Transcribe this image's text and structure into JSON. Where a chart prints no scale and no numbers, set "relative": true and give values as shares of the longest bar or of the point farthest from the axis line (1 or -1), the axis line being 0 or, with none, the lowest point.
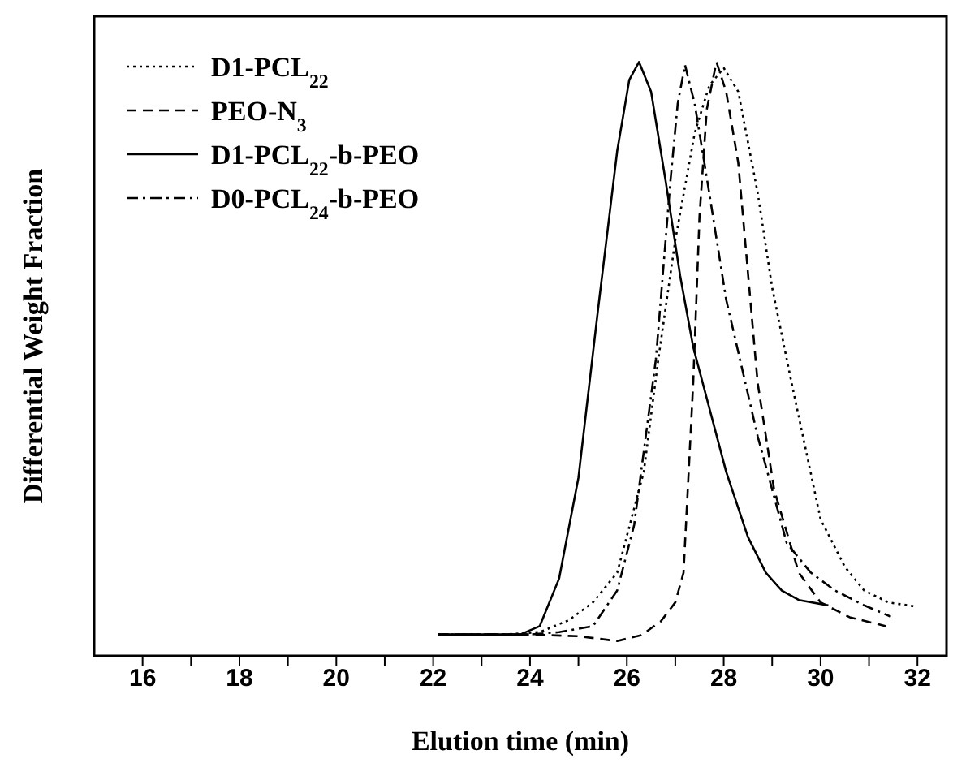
{
  "chart_data": {
    "type": "line",
    "relative": true,
    "xlabel": "Elution time (min)",
    "ylabel": "Differential Weight Fraction",
    "xlim": [
      15,
      32.6
    ],
    "xticks": [
      16,
      {
        "value": 17,
        "label": null
      },
      18,
      {
        "value": 19,
        "label": null
      },
      20,
      {
        "value": 21,
        "label": null
      },
      22,
      {
        "value": 23,
        "label": null
      },
      24,
      {
        "value": 25,
        "label": null
      },
      26,
      {
        "value": 27,
        "label": null
      },
      28,
      {
        "value": 29,
        "label": null
      },
      30,
      {
        "value": 31,
        "label": null
      },
      32
    ],
    "tick_labels": "x",
    "legend": "top left",
    "marker": "none",
    "series": [
      {
        "name": "D1-PCL$_{22}$",
        "color": "#000000",
        "line_style": "dotted",
        "x": [
          22.1,
          23.5,
          24.2,
          24.8,
          25.3,
          25.8,
          26.35,
          26.65,
          27.0,
          27.4,
          27.7,
          28.0,
          28.3,
          28.7,
          29.0,
          29.4,
          30.0,
          30.5,
          30.9,
          31.4,
          31.97
        ],
        "values": [
          0.036,
          0.036,
          0.04,
          0.06,
          0.09,
          0.14,
          0.31,
          0.5,
          0.7,
          0.88,
          0.96,
          0.99,
          0.95,
          0.78,
          0.62,
          0.46,
          0.23,
          0.15,
          0.11,
          0.09,
          0.083
        ]
      },
      {
        "name": "PEO-N$_{3}$",
        "color": "#000000",
        "line_style": "dashed",
        "x": [
          22.1,
          24.0,
          25.0,
          25.8,
          26.3,
          26.7,
          27.0,
          27.17,
          27.37,
          27.5,
          27.65,
          27.85,
          28.05,
          28.3,
          28.7,
          29.04,
          29.55,
          30.0,
          30.6,
          31.35
        ],
        "values": [
          0.036,
          0.036,
          0.033,
          0.025,
          0.035,
          0.058,
          0.09,
          0.14,
          0.46,
          0.74,
          0.92,
          1.0,
          0.95,
          0.83,
          0.46,
          0.28,
          0.14,
          0.09,
          0.065,
          0.05
        ]
      },
      {
        "name": "D1-PCL$_{22}$-b-PEO",
        "color": "#000000",
        "line_style": "solid",
        "x": [
          22.1,
          23.8,
          24.2,
          24.6,
          25.0,
          25.4,
          25.8,
          26.05,
          26.25,
          26.5,
          26.8,
          27.1,
          27.37,
          28.05,
          28.5,
          28.87,
          29.2,
          29.55,
          30.16
        ],
        "values": [
          0.036,
          0.036,
          0.05,
          0.13,
          0.3,
          0.58,
          0.85,
          0.97,
          1.0,
          0.95,
          0.8,
          0.64,
          0.52,
          0.31,
          0.2,
          0.14,
          0.11,
          0.094,
          0.085
        ]
      },
      {
        "name": "D0-PCL$_{24}$-b-PEO",
        "color": "#000000",
        "line_style": "dashdot",
        "x": [
          22.1,
          24.0,
          24.6,
          25.3,
          25.8,
          26.15,
          26.6,
          26.9,
          27.05,
          27.2,
          27.4,
          27.7,
          28.05,
          28.7,
          29.3,
          29.8,
          30.3,
          30.9,
          31.45
        ],
        "values": [
          0.036,
          0.036,
          0.04,
          0.05,
          0.11,
          0.22,
          0.5,
          0.8,
          0.93,
          0.995,
          0.93,
          0.78,
          0.6,
          0.37,
          0.19,
          0.14,
          0.11,
          0.085,
          0.066
        ]
      }
    ]
  }
}
